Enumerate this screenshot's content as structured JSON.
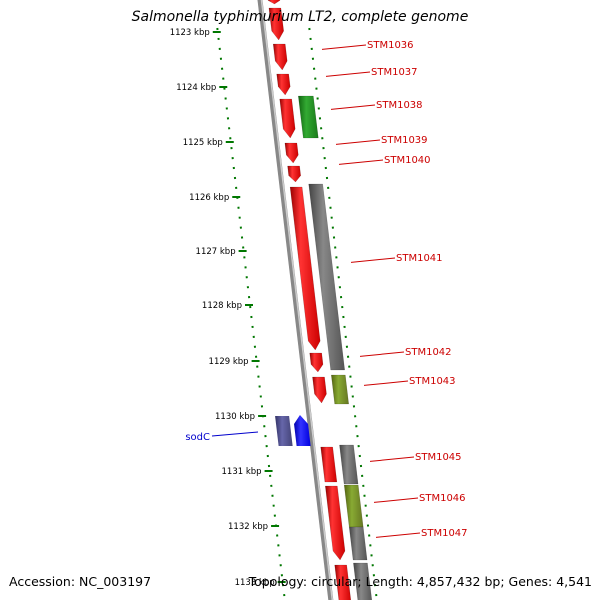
{
  "title": "Salmonella typhimurium LT2, complete genome",
  "accession": "Accession: NC_003197",
  "topology": "Topology: circular; Length: 4,857,432 bp; Genes: 4,541",
  "colors": {
    "forward_gene": "#ff0000",
    "reverse_gene": "#666666",
    "label_red": "#cc0000",
    "label_blue": "#0000cc",
    "ticks": "#007700",
    "backbone": "#888888",
    "green_gene": "#229922",
    "olive_gene": "#779922",
    "navy_gene": "#444488",
    "blue_gene": "#0000ff"
  },
  "kbp_ticks": [
    {
      "label": "1123 kbp"
    },
    {
      "label": "1124 kbp"
    },
    {
      "label": "1125 kbp"
    },
    {
      "label": "1126 kbp"
    },
    {
      "label": "1127 kbp"
    },
    {
      "label": "1128 kbp"
    },
    {
      "label": "1129 kbp"
    },
    {
      "label": "1130 kbp"
    },
    {
      "label": "1131 kbp"
    },
    {
      "label": "1132 kbp"
    },
    {
      "label": "1133 kbp"
    }
  ],
  "genes": [
    {
      "name": "STM1036",
      "strand": "forward",
      "color": "red"
    },
    {
      "name": "STM1037",
      "strand": "forward",
      "color": "red"
    },
    {
      "name": "STM1038",
      "strand": "reverse",
      "color": "green"
    },
    {
      "name": "STM1039",
      "strand": "forward",
      "color": "red"
    },
    {
      "name": "STM1040",
      "strand": "forward",
      "color": "red"
    },
    {
      "name": "STM1041",
      "strand": "forward+reverse",
      "color": "red"
    },
    {
      "name": "STM1042",
      "strand": "forward",
      "color": "red"
    },
    {
      "name": "STM1043",
      "strand": "reverse",
      "color": "olive"
    },
    {
      "name": "STM1045",
      "strand": "forward+reverse",
      "color": "red"
    },
    {
      "name": "STM1046",
      "strand": "reverse",
      "color": "olive"
    },
    {
      "name": "STM1047",
      "strand": "forward",
      "color": "red"
    },
    {
      "name": "sodC",
      "strand": "left",
      "color": "blue"
    }
  ]
}
